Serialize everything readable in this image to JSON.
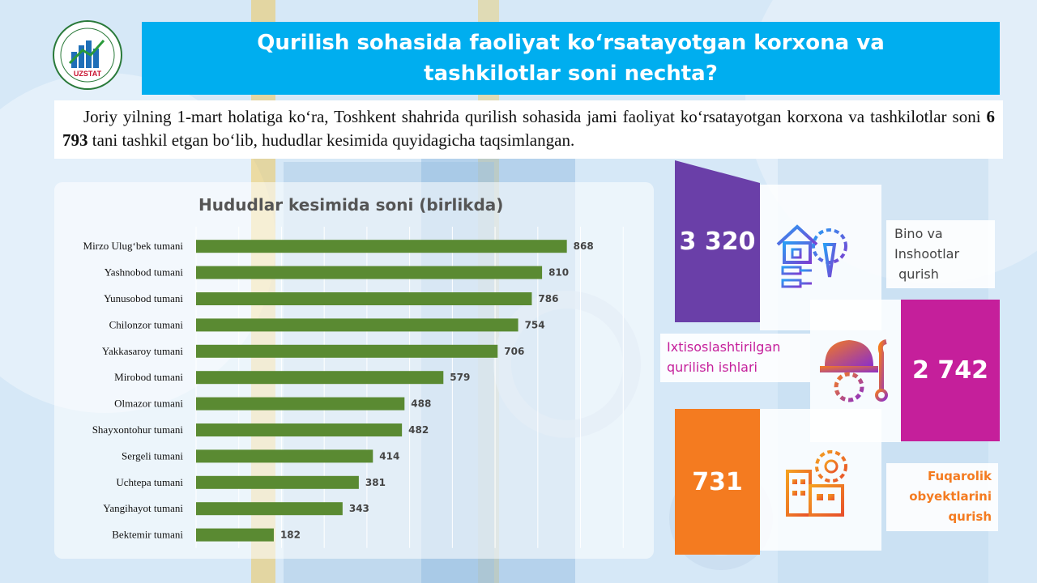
{
  "header": {
    "title_line1": "Qurilish sohasida faoliyat ko‘rsatayotgan korxona va",
    "title_line2": "tashkilotlar soni nechta?"
  },
  "logo": {
    "text": "UZSTAT",
    "icon": "uzstat-logo"
  },
  "intro": {
    "part1": "Joriy yilning 1-mart holatiga ko‘ra, Toshkent shahrida qurilish sohasida jami faoliyat ko‘rsatayotgan korxona va tashkilotlar soni",
    "total": "6 793",
    "part2": "tani tashkil etgan bo‘lib, hududlar kesimida quyidagicha taqsimlangan."
  },
  "chart_data": {
    "type": "bar",
    "orientation": "horizontal",
    "title": "Hududlar kesimida soni (birlikda)",
    "categories": [
      "Mirzo Ulug‘bek tumani",
      "Yashnobod tumani",
      "Yunusobod tumani",
      "Chilonzor tumani",
      "Yakkasaroy tumani",
      "Mirobod tumani",
      "Olmazor tumani",
      "Shayxontohur tumani",
      "Sergeli tumani",
      "Uchtepa tumani",
      "Yangihayot tumani",
      "Bektemir tumani"
    ],
    "values": [
      868,
      810,
      786,
      754,
      706,
      579,
      488,
      482,
      414,
      381,
      343,
      182
    ],
    "xlim": [
      0,
      1100
    ],
    "bar_color": "#5a8a32",
    "grid": true
  },
  "stats": [
    {
      "value": "3 320",
      "label_lines": [
        "Bino va",
        "Inshootlar",
        " qurish"
      ],
      "color": "#6a3fa8",
      "label_color": "#444444",
      "icon": "building-gear-icon"
    },
    {
      "value": "2 742",
      "label_lines": [
        "Ixtisoslashtirilgan",
        "qurilish ishlari"
      ],
      "color": "#c51f9b",
      "label_color": "#c51f9b",
      "icon": "helmet-wrench-icon"
    },
    {
      "value": "731",
      "label_lines": [
        "Fuqarolik",
        "obyektlarini",
        "qurish"
      ],
      "color": "#f47b20",
      "label_color": "#f47b20",
      "icon": "factory-gear-icon"
    }
  ]
}
